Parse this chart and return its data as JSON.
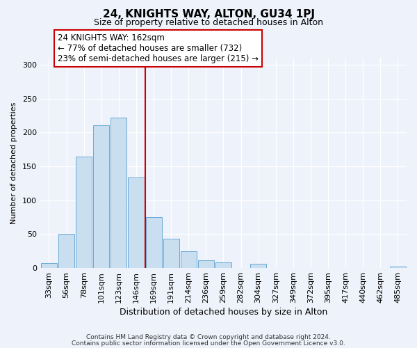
{
  "title": "24, KNIGHTS WAY, ALTON, GU34 1PJ",
  "subtitle": "Size of property relative to detached houses in Alton",
  "xlabel": "Distribution of detached houses by size in Alton",
  "ylabel": "Number of detached properties",
  "bar_labels": [
    "33sqm",
    "56sqm",
    "78sqm",
    "101sqm",
    "123sqm",
    "146sqm",
    "169sqm",
    "191sqm",
    "214sqm",
    "236sqm",
    "259sqm",
    "282sqm",
    "304sqm",
    "327sqm",
    "349sqm",
    "372sqm",
    "395sqm",
    "417sqm",
    "440sqm",
    "462sqm",
    "485sqm"
  ],
  "bar_values": [
    7,
    50,
    164,
    211,
    222,
    133,
    75,
    43,
    25,
    11,
    8,
    0,
    6,
    0,
    0,
    0,
    0,
    0,
    0,
    0,
    2
  ],
  "bar_color": "#c9dff0",
  "bar_edge_color": "#6aaad4",
  "vline_x": 6.0,
  "vline_color": "#cc0000",
  "ylim": [
    0,
    310
  ],
  "yticks": [
    0,
    50,
    100,
    150,
    200,
    250,
    300
  ],
  "annotation_title": "24 KNIGHTS WAY: 162sqm",
  "annotation_line1": "← 77% of detached houses are smaller (732)",
  "annotation_line2": "23% of semi-detached houses are larger (215) →",
  "annotation_box_facecolor": "#ffffff",
  "annotation_box_edgecolor": "#cc0000",
  "footer_line1": "Contains HM Land Registry data © Crown copyright and database right 2024.",
  "footer_line2": "Contains public sector information licensed under the Open Government Licence v3.0.",
  "background_color": "#eef2fb",
  "plot_bg_color": "#eef2fb",
  "grid_color": "#ffffff",
  "title_fontsize": 11,
  "subtitle_fontsize": 9,
  "xlabel_fontsize": 9,
  "ylabel_fontsize": 8,
  "tick_fontsize": 8,
  "ann_fontsize": 8.5,
  "footer_fontsize": 6.5
}
